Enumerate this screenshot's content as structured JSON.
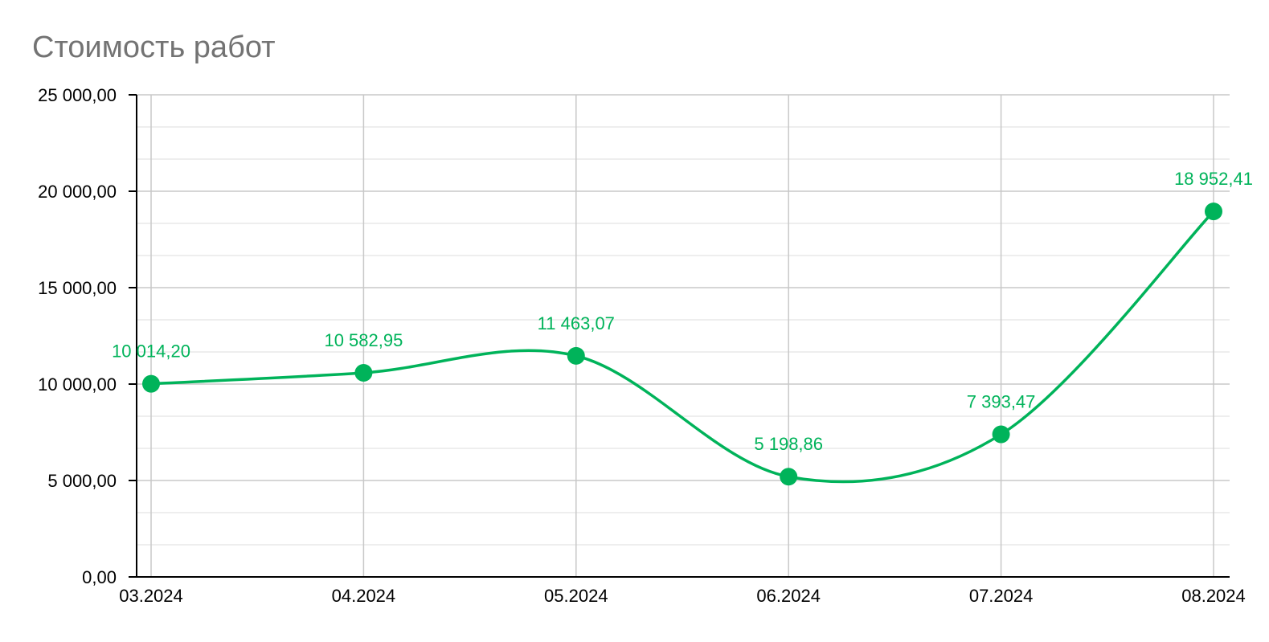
{
  "chart_data": {
    "type": "line",
    "title": "Стоимость работ",
    "categories": [
      "03.2024",
      "04.2024",
      "05.2024",
      "06.2024",
      "07.2024",
      "08.2024"
    ],
    "series": [
      {
        "values": [
          10014.2,
          10582.95,
          11463.07,
          5198.86,
          7393.47,
          18952.41
        ],
        "labels": [
          "10 014,20",
          "10 582,95",
          "11 463,07",
          "5 198,86",
          "7 393,47",
          "18 952,41"
        ]
      }
    ],
    "yticks": [
      "0,00",
      "5 000,00",
      "10 000,00",
      "15 000,00",
      "20 000,00",
      "25 000,00"
    ],
    "ylim": [
      0,
      25000
    ],
    "grid": true,
    "smooth": true,
    "colors": {
      "series": "#00b35a",
      "grid": "#c8c8c8",
      "grid_minor": "#e4e4e4",
      "axis": "#000000",
      "title": "#737373"
    }
  }
}
